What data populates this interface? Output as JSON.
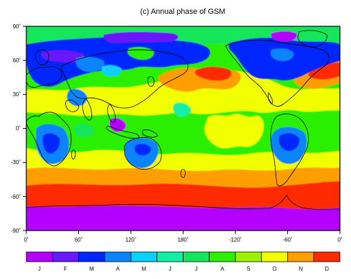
{
  "title": "(c) Annual phase of GSM",
  "x_ticks": [
    "0˚",
    "60˚",
    "120˚",
    "180˚",
    "-120˚",
    "-60˚",
    "0˚"
  ],
  "y_ticks": [
    "90˚",
    "60˚",
    "30˚",
    "0˚",
    "-30˚",
    "-60˚",
    "-90˚"
  ],
  "colorbar": {
    "labels": [
      "J",
      "F",
      "M",
      "A",
      "M",
      "J",
      "J",
      "A",
      "S",
      "O",
      "N",
      "D"
    ],
    "colors": [
      "#b400ff",
      "#6a18ff",
      "#0026ff",
      "#0a84ff",
      "#08d0ff",
      "#12f0a6",
      "#16e65a",
      "#2cf000",
      "#9cf200",
      "#f2ff00",
      "#ff9e00",
      "#ff2a00"
    ]
  },
  "map": {
    "projection": "cylindrical equidistant",
    "longitude_range": [
      0,
      360
    ],
    "latitude_range": [
      -90,
      90
    ]
  }
}
